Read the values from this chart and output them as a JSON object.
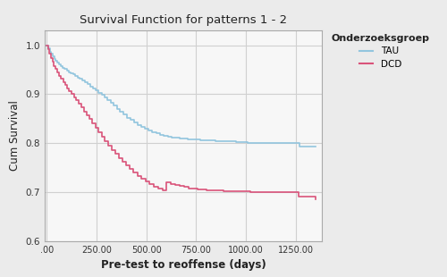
{
  "title": "Survival Function for patterns 1 - 2",
  "xlabel": "Pre-test to reoffense (days)",
  "ylabel": "Cum Survival",
  "legend_title": "Onderzoeksgroep",
  "legend_labels": [
    "TAU",
    "DCD"
  ],
  "xlim": [
    -10,
    1380
  ],
  "ylim": [
    0.6,
    1.03
  ],
  "xticks": [
    0,
    250,
    500,
    750,
    1000,
    1250
  ],
  "xticklabels": [
    ".00",
    "250.00",
    "500.00",
    "750.00",
    "1000.00",
    "1250.00"
  ],
  "yticks": [
    0.6,
    0.7,
    0.8,
    0.9,
    1.0
  ],
  "yticklabels": [
    "0.6",
    "0.7",
    "0.8",
    "0.9",
    "1.0"
  ],
  "color_TAU": "#92C5DE",
  "color_DCD": "#D9537A",
  "background_color": "#ebebeb",
  "plot_bg_color": "#f7f7f7",
  "grid_color": "#d0d0d0",
  "TAU_x": [
    0,
    8,
    15,
    22,
    30,
    38,
    46,
    55,
    63,
    72,
    81,
    90,
    100,
    110,
    121,
    132,
    143,
    155,
    167,
    179,
    192,
    205,
    218,
    232,
    246,
    261,
    275,
    290,
    305,
    320,
    336,
    352,
    368,
    385,
    402,
    419,
    437,
    455,
    473,
    492,
    511,
    530,
    549,
    568,
    588,
    608,
    628,
    648,
    668,
    688,
    708,
    728,
    748,
    768,
    788,
    808,
    828,
    848,
    868,
    888,
    908,
    928,
    948,
    968,
    988,
    1008,
    1028,
    1048,
    1068,
    1088,
    1108,
    1128,
    1148,
    1168,
    1188,
    1208,
    1228,
    1248,
    1268,
    1350
  ],
  "TAU_y": [
    1.0,
    0.993,
    0.987,
    0.982,
    0.977,
    0.972,
    0.968,
    0.964,
    0.96,
    0.957,
    0.954,
    0.951,
    0.948,
    0.945,
    0.942,
    0.94,
    0.937,
    0.934,
    0.931,
    0.928,
    0.924,
    0.92,
    0.916,
    0.912,
    0.908,
    0.903,
    0.898,
    0.893,
    0.888,
    0.882,
    0.876,
    0.87,
    0.864,
    0.858,
    0.852,
    0.847,
    0.842,
    0.837,
    0.833,
    0.829,
    0.826,
    0.823,
    0.82,
    0.817,
    0.815,
    0.813,
    0.812,
    0.811,
    0.81,
    0.809,
    0.808,
    0.807,
    0.807,
    0.806,
    0.806,
    0.805,
    0.805,
    0.804,
    0.804,
    0.803,
    0.803,
    0.803,
    0.802,
    0.802,
    0.802,
    0.801,
    0.801,
    0.8,
    0.8,
    0.8,
    0.8,
    0.8,
    0.8,
    0.8,
    0.8,
    0.8,
    0.8,
    0.8,
    0.793,
    0.793
  ],
  "DCD_x": [
    0,
    7,
    14,
    21,
    29,
    37,
    45,
    54,
    63,
    72,
    82,
    92,
    102,
    113,
    124,
    136,
    148,
    160,
    173,
    186,
    200,
    214,
    229,
    244,
    259,
    275,
    291,
    308,
    325,
    343,
    361,
    379,
    398,
    417,
    436,
    455,
    475,
    495,
    516,
    537,
    558,
    580,
    602,
    624,
    646,
    668,
    690,
    712,
    734,
    756,
    778,
    800,
    822,
    844,
    866,
    888,
    910,
    932,
    954,
    976,
    998,
    1020,
    1042,
    1064,
    1086,
    1108,
    1130,
    1152,
    1174,
    1196,
    1218,
    1240,
    1262,
    1350
  ],
  "DCD_y": [
    1.0,
    0.991,
    0.982,
    0.974,
    0.966,
    0.958,
    0.951,
    0.944,
    0.937,
    0.931,
    0.924,
    0.918,
    0.912,
    0.906,
    0.9,
    0.894,
    0.887,
    0.88,
    0.873,
    0.865,
    0.857,
    0.849,
    0.84,
    0.832,
    0.823,
    0.813,
    0.804,
    0.795,
    0.786,
    0.778,
    0.77,
    0.762,
    0.754,
    0.747,
    0.74,
    0.733,
    0.727,
    0.721,
    0.716,
    0.711,
    0.707,
    0.703,
    0.72,
    0.717,
    0.714,
    0.712,
    0.71,
    0.708,
    0.707,
    0.706,
    0.705,
    0.704,
    0.704,
    0.703,
    0.703,
    0.702,
    0.702,
    0.702,
    0.701,
    0.701,
    0.701,
    0.7,
    0.7,
    0.7,
    0.7,
    0.7,
    0.7,
    0.7,
    0.7,
    0.7,
    0.7,
    0.7,
    0.69,
    0.685
  ]
}
